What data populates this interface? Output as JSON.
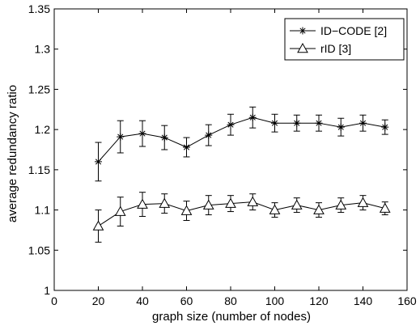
{
  "chart_data": {
    "type": "line",
    "title": "",
    "xlabel": "graph size (number of nodes)",
    "ylabel": "average redundancy ratio",
    "xlim": [
      0,
      160
    ],
    "ylim": [
      1,
      1.35
    ],
    "xticks": [
      0,
      20,
      40,
      60,
      80,
      100,
      120,
      140,
      160
    ],
    "yticks": [
      1,
      1.05,
      1.1,
      1.15,
      1.2,
      1.25,
      1.3,
      1.35
    ],
    "xtick_labels": [
      "0",
      "20",
      "40",
      "60",
      "80",
      "100",
      "120",
      "140",
      "160"
    ],
    "ytick_labels": [
      "1",
      "1.05",
      "1.1",
      "1.15",
      "1.2",
      "1.25",
      "1.3",
      "1.35"
    ],
    "grid": false,
    "legend_position": "top-right",
    "x": [
      20,
      30,
      40,
      50,
      60,
      70,
      80,
      90,
      100,
      110,
      120,
      130,
      140,
      150
    ],
    "series": [
      {
        "name": "ID−CODE [2]",
        "marker": "asterisk",
        "values": [
          1.16,
          1.191,
          1.195,
          1.19,
          1.178,
          1.193,
          1.206,
          1.215,
          1.208,
          1.208,
          1.208,
          1.203,
          1.208,
          1.203
        ],
        "error": [
          0.024,
          0.02,
          0.016,
          0.015,
          0.012,
          0.013,
          0.013,
          0.013,
          0.011,
          0.01,
          0.01,
          0.011,
          0.01,
          0.009
        ]
      },
      {
        "name": "rID [3]",
        "marker": "triangle",
        "values": [
          1.08,
          1.098,
          1.107,
          1.108,
          1.099,
          1.106,
          1.108,
          1.11,
          1.1,
          1.106,
          1.1,
          1.106,
          1.109,
          1.102
        ],
        "error": [
          0.02,
          0.018,
          0.015,
          0.012,
          0.012,
          0.012,
          0.01,
          0.01,
          0.009,
          0.009,
          0.009,
          0.009,
          0.009,
          0.008
        ]
      }
    ]
  }
}
